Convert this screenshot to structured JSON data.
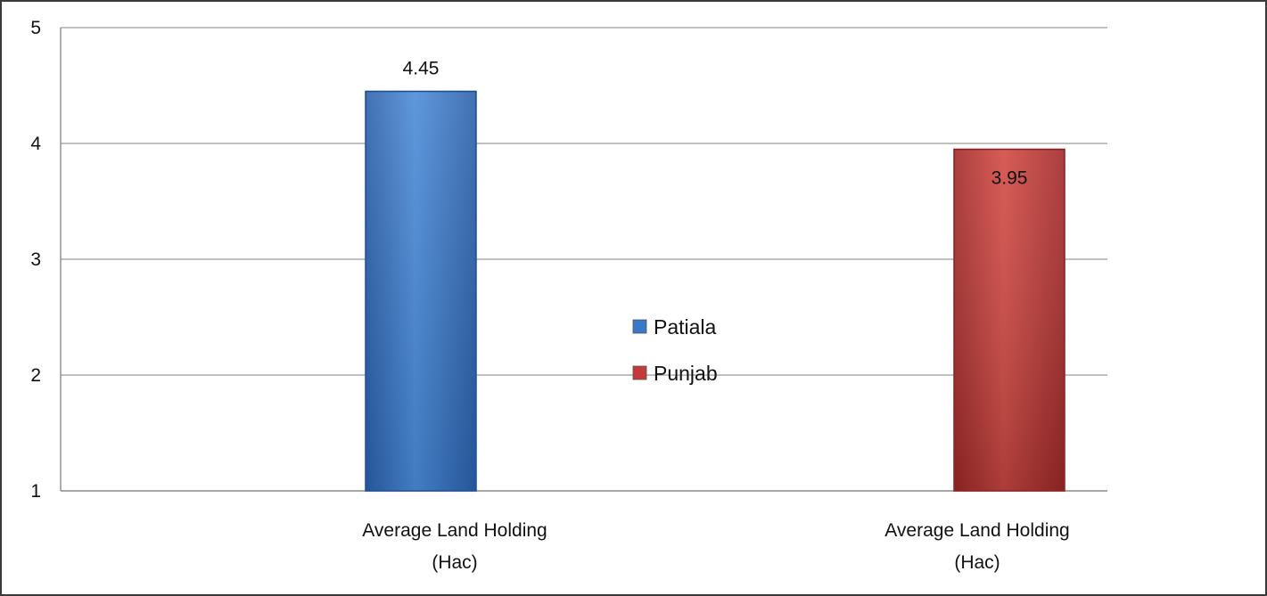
{
  "chart_data": {
    "type": "bar",
    "title": "",
    "xlabel": "",
    "ylabel": "",
    "ylim": [
      1,
      5
    ],
    "yticks": [
      1,
      2,
      3,
      4,
      5
    ],
    "grid": true,
    "legend_position": "center",
    "bars": [
      {
        "series": "Patiala",
        "category_lines": [
          "Average Land Holding",
          "(Hac)"
        ],
        "value": 4.45,
        "label": "4.45"
      },
      {
        "series": "Punjab",
        "category_lines": [
          "Average Land Holding",
          "(Hac)"
        ],
        "value": 3.95,
        "label": "3.95"
      }
    ],
    "legend": [
      {
        "name": "Patiala",
        "color": "#3a78c8"
      },
      {
        "name": "Punjab",
        "color": "#c43a3a"
      }
    ],
    "colors": {
      "Patiala": "#3a78c8",
      "Punjab": "#c43a3a",
      "grid": "#9a9a9a",
      "axis": "#8a8a8a"
    }
  }
}
